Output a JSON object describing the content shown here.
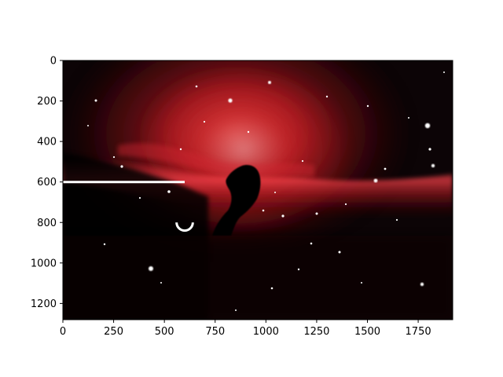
{
  "chart_data": {
    "type": "image",
    "image_subject": "Horsehead Nebula",
    "xlim": [
      0,
      1920
    ],
    "ylim": [
      1280,
      0
    ],
    "x_ticks": [
      0,
      250,
      500,
      750,
      1000,
      1250,
      1500,
      1750
    ],
    "y_ticks": [
      0,
      200,
      400,
      600,
      800,
      1000,
      1200
    ],
    "annotations": [
      {
        "kind": "line",
        "x": [
          0,
          600
        ],
        "y": [
          600,
          600
        ],
        "color": "#ffffff"
      },
      {
        "kind": "arc",
        "center": [
          600,
          800
        ],
        "radius": 40,
        "color": "#ffffff"
      }
    ],
    "colors": {
      "nebula_core": "#ff3a3a",
      "nebula_mid": "#c21a22",
      "background": "#0c0406",
      "annotation": "#ffffff"
    }
  }
}
